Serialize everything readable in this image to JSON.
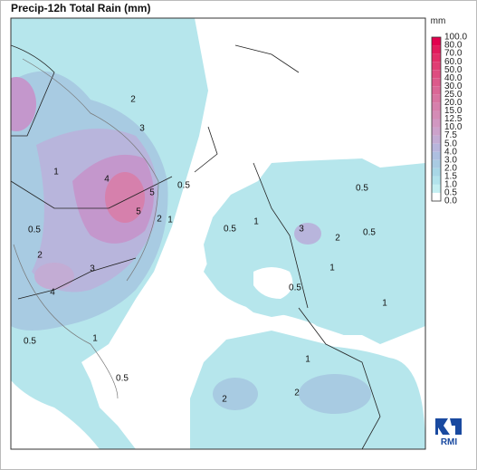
{
  "title": "Precip-12h Total Rain (mm)",
  "legend": {
    "unit": "mm",
    "labels": [
      "100.0",
      "80.0",
      "70.0",
      "60.0",
      "50.0",
      "40.0",
      "30.0",
      "25.0",
      "20.0",
      "15.0",
      "12.5",
      "10.0",
      "7.5",
      "5.0",
      "4.0",
      "3.0",
      "2.0",
      "1.5",
      "1.0",
      "0.5",
      "0.0"
    ],
    "colors": [
      "#e2004e",
      "#e21a5c",
      "#e22e68",
      "#e03e74",
      "#de4c80",
      "#dc5a8b",
      "#da6796",
      "#d874a1",
      "#d680ac",
      "#d48cb6",
      "#d197c1",
      "#cca2cb",
      "#c3acd4",
      "#b8b5dc",
      "#aebfe0",
      "#a9cbe2",
      "#a8d7e6",
      "#b2e3ec",
      "#c4eff2",
      "#ffffff"
    ]
  },
  "contour_labels": [
    "2",
    "3",
    "4",
    "5",
    "5",
    "2",
    "1",
    "0.5",
    "1",
    "0.5",
    "2",
    "3",
    "4",
    "1",
    "0.5",
    "0.5",
    "0.5",
    "0.5",
    "1",
    "3",
    "2",
    "0.5",
    "1",
    "0.5",
    "1",
    "1",
    "2",
    "2"
  ],
  "logo": "RMI"
}
